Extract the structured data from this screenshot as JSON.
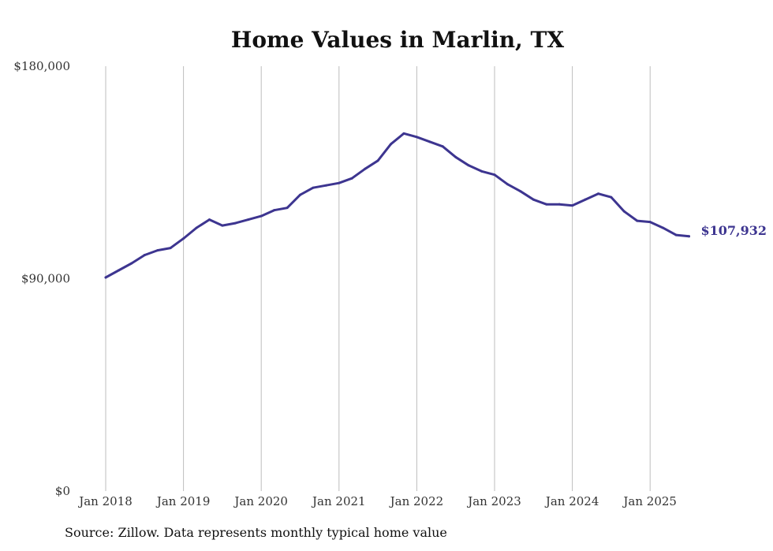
{
  "chart_data": {
    "type": "line",
    "title": "Home Values in Marlin, TX",
    "xlabel": "",
    "ylabel": "",
    "ylim": [
      0,
      180000
    ],
    "yticks": [
      {
        "value": 0,
        "label": "$0"
      },
      {
        "value": 90000,
        "label": "$90,000"
      },
      {
        "value": 180000,
        "label": "$180,000"
      }
    ],
    "xticks": [
      {
        "value": "2018-01",
        "label": "Jan 2018"
      },
      {
        "value": "2019-01",
        "label": "Jan 2019"
      },
      {
        "value": "2020-01",
        "label": "Jan 2020"
      },
      {
        "value": "2021-01",
        "label": "Jan 2021"
      },
      {
        "value": "2022-01",
        "label": "Jan 2022"
      },
      {
        "value": "2023-01",
        "label": "Jan 2023"
      },
      {
        "value": "2024-01",
        "label": "Jan 2024"
      },
      {
        "value": "2025-01",
        "label": "Jan 2025"
      }
    ],
    "grid": "vertical",
    "series": [
      {
        "color": "#3d3590",
        "end_label": "$107,932",
        "x": [
          "2018-01",
          "2018-03",
          "2018-05",
          "2018-07",
          "2018-09",
          "2018-11",
          "2019-01",
          "2019-03",
          "2019-05",
          "2019-07",
          "2019-09",
          "2019-11",
          "2020-01",
          "2020-03",
          "2020-05",
          "2020-07",
          "2020-09",
          "2020-11",
          "2021-01",
          "2021-03",
          "2021-05",
          "2021-07",
          "2021-09",
          "2021-11",
          "2022-01",
          "2022-03",
          "2022-05",
          "2022-07",
          "2022-09",
          "2022-11",
          "2023-01",
          "2023-03",
          "2023-05",
          "2023-07",
          "2023-09",
          "2023-11",
          "2024-01",
          "2024-03",
          "2024-05",
          "2024-07",
          "2024-09",
          "2024-11",
          "2025-01",
          "2025-03",
          "2025-05",
          "2025-07"
        ],
        "values": [
          90500,
          93500,
          96500,
          100000,
          102000,
          103000,
          107000,
          111500,
          115000,
          112500,
          113500,
          115000,
          116500,
          119000,
          120000,
          125500,
          128500,
          129500,
          130500,
          132500,
          136500,
          140000,
          147000,
          151500,
          150000,
          148000,
          146000,
          141500,
          138000,
          135500,
          134000,
          130000,
          127000,
          123500,
          121500,
          121500,
          121000,
          123500,
          126000,
          124500,
          118500,
          114500,
          114000,
          111500,
          108500,
          107932
        ]
      }
    ]
  },
  "source_note": "Source: Zillow. Data represents monthly typical home value"
}
